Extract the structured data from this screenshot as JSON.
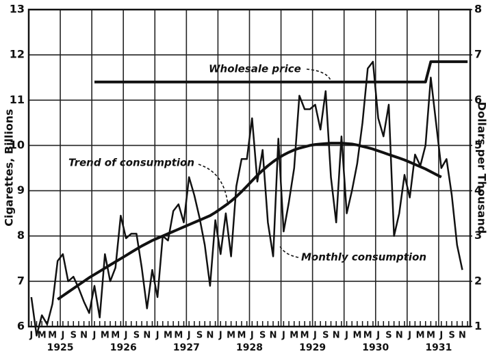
{
  "chart_data": {
    "type": "line",
    "y_label": "Cigarettes, Billions",
    "y2_label": "Dollars per Thousand",
    "categories": [
      "J",
      null,
      "M",
      null,
      "M",
      null,
      "J",
      null,
      "S",
      null,
      "N",
      null,
      "J",
      null,
      "M",
      null,
      "M",
      null,
      "J",
      null,
      "S",
      null,
      "N",
      null,
      "J",
      null,
      "M",
      null,
      "M",
      null,
      "J",
      null,
      "S",
      null,
      "N",
      null,
      "J",
      null,
      "M",
      null,
      "M",
      null,
      "J",
      null,
      "S",
      null,
      "N",
      null,
      "J",
      null,
      "M",
      null,
      "M",
      null,
      "J",
      null,
      "S",
      null,
      "N",
      null,
      "J",
      null,
      "M",
      null,
      "M",
      null,
      "J",
      null,
      "S",
      null,
      "N",
      null,
      "J",
      null,
      "M",
      null,
      "M",
      null,
      "J",
      null,
      "S",
      null,
      "N",
      null
    ],
    "year_labels": [
      "1925",
      "1926",
      "1927",
      "1928",
      "1929",
      "1930",
      "1931"
    ],
    "series": [
      {
        "name": "Monthly consumption",
        "color": "#111111",
        "values": [
          6.65,
          5.8,
          6.25,
          6.05,
          6.5,
          7.45,
          7.6,
          7.0,
          7.1,
          6.85,
          6.55,
          6.3,
          6.9,
          6.2,
          7.6,
          7.0,
          7.3,
          8.45,
          7.95,
          8.05,
          8.05,
          7.3,
          6.4,
          7.25,
          6.65,
          8.0,
          7.9,
          8.55,
          8.7,
          8.3,
          9.3,
          8.9,
          8.4,
          7.8,
          6.9,
          8.35,
          7.6,
          8.5,
          7.55,
          9.1,
          9.7,
          9.7,
          10.6,
          9.2,
          9.9,
          8.3,
          7.55,
          10.15,
          8.1,
          8.75,
          9.5,
          11.1,
          10.8,
          10.8,
          10.9,
          10.35,
          11.2,
          9.3,
          8.3,
          10.2,
          8.5,
          9.0,
          9.6,
          10.5,
          11.7,
          11.85,
          10.6,
          10.2,
          10.9,
          8.0,
          8.5,
          9.35,
          8.85,
          9.8,
          9.55,
          10.0,
          11.5,
          10.5,
          9.5,
          9.7,
          8.9,
          7.8,
          7.25,
          null
        ]
      },
      {
        "name": "Trend of consumption",
        "color": "#111111",
        "values": [
          null,
          null,
          null,
          null,
          null,
          6.6,
          6.68,
          6.76,
          6.84,
          6.92,
          7.0,
          7.08,
          7.15,
          7.22,
          7.29,
          7.36,
          7.43,
          7.5,
          7.57,
          7.64,
          7.71,
          7.78,
          7.84,
          7.9,
          7.95,
          8.0,
          8.05,
          8.1,
          8.15,
          8.2,
          8.25,
          8.3,
          8.35,
          8.4,
          8.45,
          8.52,
          8.6,
          8.68,
          8.77,
          8.87,
          8.98,
          9.1,
          9.22,
          9.34,
          9.45,
          9.55,
          9.64,
          9.72,
          9.79,
          9.85,
          9.9,
          9.94,
          9.97,
          10.0,
          10.02,
          10.03,
          10.04,
          10.05,
          10.05,
          10.05,
          10.04,
          10.03,
          10.01,
          9.98,
          9.95,
          9.92,
          9.88,
          9.84,
          9.8,
          9.76,
          9.72,
          9.68,
          9.63,
          9.58,
          9.53,
          9.48,
          9.42,
          9.36,
          9.3,
          null,
          null,
          null,
          null,
          null
        ]
      },
      {
        "name": "Wholesale price",
        "color": "#111111",
        "axis": "y2",
        "values": [
          null,
          null,
          null,
          null,
          null,
          null,
          null,
          null,
          null,
          null,
          null,
          null,
          6.4,
          6.4,
          6.4,
          6.4,
          6.4,
          6.4,
          6.4,
          6.4,
          6.4,
          6.4,
          6.4,
          6.4,
          6.4,
          6.4,
          6.4,
          6.4,
          6.4,
          6.4,
          6.4,
          6.4,
          6.4,
          6.4,
          6.4,
          6.4,
          6.4,
          6.4,
          6.4,
          6.4,
          6.4,
          6.4,
          6.4,
          6.4,
          6.4,
          6.4,
          6.4,
          6.4,
          6.4,
          6.4,
          6.4,
          6.4,
          6.4,
          6.4,
          6.4,
          6.4,
          6.4,
          6.4,
          6.4,
          6.4,
          6.4,
          6.4,
          6.4,
          6.4,
          6.4,
          6.4,
          6.4,
          6.4,
          6.4,
          6.4,
          6.4,
          6.4,
          6.4,
          6.4,
          6.4,
          6.4,
          6.85,
          6.85,
          6.85,
          6.85,
          6.85,
          6.85,
          6.85,
          6.85
        ]
      }
    ],
    "ylim": [
      6,
      13
    ],
    "yticks": [
      6,
      7,
      8,
      9,
      10,
      11,
      12,
      13
    ],
    "y2lim": [
      1,
      8
    ],
    "y2ticks": [
      1,
      2,
      3,
      4,
      5,
      6,
      7,
      8
    ],
    "grid": true
  }
}
